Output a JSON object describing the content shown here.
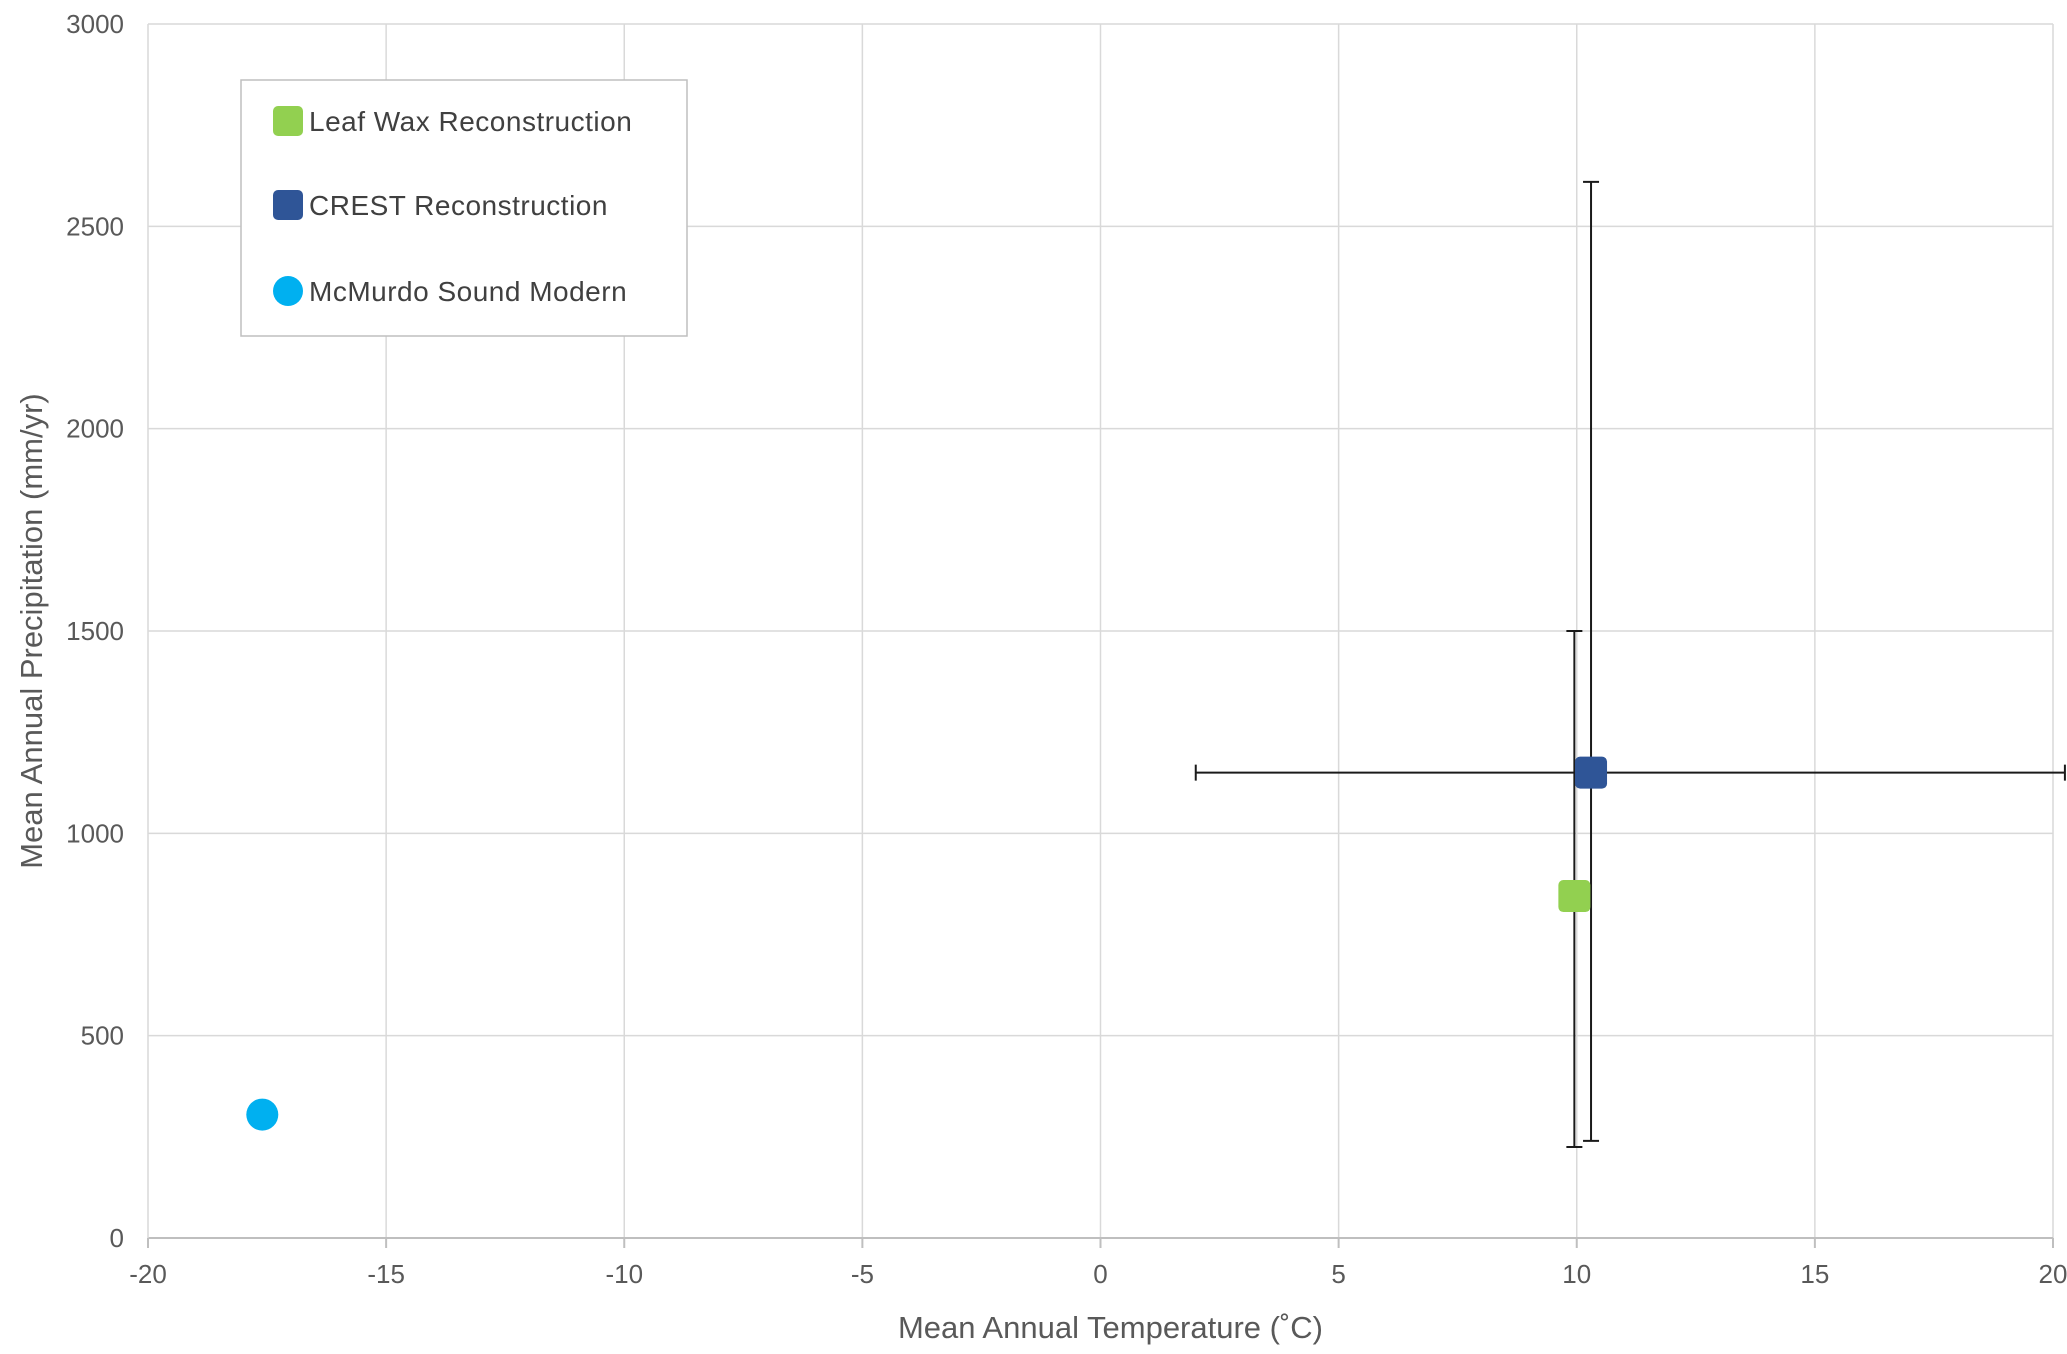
{
  "chart_data": {
    "type": "scatter",
    "title": "",
    "xlabel": "Mean Annual Temperature (˚C)",
    "ylabel": "Mean Annual Precipitation (mm/yr)",
    "xlim": [
      -20,
      20
    ],
    "ylim": [
      0,
      3000
    ],
    "x_ticks": [
      -20,
      -15,
      -10,
      -5,
      0,
      5,
      10,
      15,
      20
    ],
    "y_ticks": [
      0,
      500,
      1000,
      1500,
      2000,
      2500,
      3000
    ],
    "x_tick_labels": [
      "-20",
      "-15",
      "-10",
      "-5",
      "0",
      "5",
      "10",
      "15",
      "20"
    ],
    "y_tick_labels": [
      "0",
      "500",
      "1000",
      "1500",
      "2000",
      "2500",
      "3000"
    ],
    "grid": true,
    "legend_position": "top-left",
    "series": [
      {
        "name": "Leaf Wax Reconstruction",
        "marker": "square",
        "color": "#92d050",
        "points": [
          {
            "x": 9.95,
            "y": 845,
            "y_err_low": 225,
            "y_err_high": 1500
          }
        ]
      },
      {
        "name": "CREST Reconstruction",
        "marker": "square",
        "color": "#2f5597",
        "points": [
          {
            "x": 10.3,
            "y": 1150,
            "x_err_low": 2.0,
            "x_err_high": 20.25,
            "y_err_low": 240,
            "y_err_high": 2610
          }
        ]
      },
      {
        "name": "McMurdo Sound Modern",
        "marker": "circle",
        "color": "#00b0f0",
        "points": [
          {
            "x": -17.6,
            "y": 305
          }
        ]
      }
    ]
  }
}
